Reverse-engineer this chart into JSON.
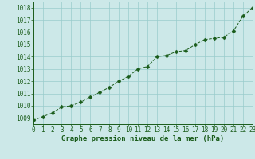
{
  "x": [
    0,
    1,
    2,
    3,
    4,
    5,
    6,
    7,
    8,
    9,
    10,
    11,
    12,
    13,
    14,
    15,
    16,
    17,
    18,
    19,
    20,
    21,
    22,
    23
  ],
  "y": [
    1008.8,
    1009.1,
    1009.4,
    1009.9,
    1010.0,
    1010.3,
    1010.7,
    1011.1,
    1011.5,
    1012.0,
    1012.4,
    1013.0,
    1013.2,
    1014.0,
    1014.1,
    1014.4,
    1014.5,
    1015.0,
    1015.4,
    1015.5,
    1015.6,
    1016.1,
    1017.3,
    1018.0
  ],
  "line_color": "#1a5c1a",
  "marker": "D",
  "marker_size": 2.5,
  "bg_color": "#cce8e8",
  "plot_bg_color": "#cce8e8",
  "grid_color": "#99cccc",
  "xlabel": "Graphe pression niveau de la mer (hPa)",
  "xlabel_color": "#1a5c1a",
  "tick_label_color": "#1a5c1a",
  "ylim": [
    1008.5,
    1018.5
  ],
  "yticks": [
    1009,
    1010,
    1011,
    1012,
    1013,
    1014,
    1015,
    1016,
    1017,
    1018
  ],
  "xlim": [
    0,
    23
  ],
  "xticks": [
    0,
    1,
    2,
    3,
    4,
    5,
    6,
    7,
    8,
    9,
    10,
    11,
    12,
    13,
    14,
    15,
    16,
    17,
    18,
    19,
    20,
    21,
    22,
    23
  ],
  "tick_fontsize": 5.5,
  "label_fontsize": 6.5
}
